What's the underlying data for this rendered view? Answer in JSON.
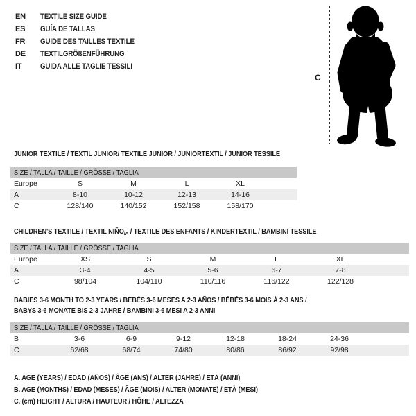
{
  "colors": {
    "bar": "#c8c8c8",
    "stripe": "#ededed",
    "ink": "#1c1c1c"
  },
  "languages": [
    {
      "code": "EN",
      "title": "TEXTILE SIZE GUIDE"
    },
    {
      "code": "ES",
      "title": "GUÍA DE TALLAS"
    },
    {
      "code": "FR",
      "title": "GUIDE DES TAILLES TEXTILE"
    },
    {
      "code": "DE",
      "title": "TEXTILGRÖßENFÜHRUNG"
    },
    {
      "code": "IT",
      "title": "GUIDA ALLE TAGLIE TESSILI"
    }
  ],
  "figure": {
    "height_label": "C"
  },
  "sections": [
    {
      "id": "junior",
      "heading_lines": [
        "JUNIOR TEXTILE / TEXTIL JUNIOR/ TEXTILE JUNIOR / JUNIORTEXTIL / JUNIOR TESSILE"
      ],
      "size_bar": "SIZE / TALLA / TAILLE / GRÖSSE / TAGLIA",
      "rows": [
        {
          "label": "Europe",
          "cells": [
            "S",
            "M",
            "L",
            "XL"
          ],
          "shaded": false
        },
        {
          "label": "A",
          "cells": [
            "8-10",
            "10-12",
            "12-13",
            "14-16"
          ],
          "shaded": true
        },
        {
          "label": "C",
          "cells": [
            "128/140",
            "140/152",
            "152/158",
            "158/170"
          ],
          "shaded": false
        }
      ]
    },
    {
      "id": "children",
      "heading_parts": [
        "CHILDREN'S TEXTILE / TEXTIL NIÑO",
        "/A",
        " / TEXTILE DES ENFANTS / KINDERTEXTIL / BAMBINI TESSILE"
      ],
      "size_bar": "SIZE / TALLA / TAILLE / GRÖSSE / TAGLIA",
      "rows": [
        {
          "label": "Europe",
          "cells": [
            "XS",
            "S",
            "M",
            "L",
            "XL"
          ],
          "shaded": false
        },
        {
          "label": "A",
          "cells": [
            "3-4",
            "4-5",
            "5-6",
            "6-7",
            "7-8"
          ],
          "shaded": true
        },
        {
          "label": "C",
          "cells": [
            "98/104",
            "104/110",
            "110/116",
            "116/122",
            "122/128"
          ],
          "shaded": false
        }
      ]
    },
    {
      "id": "babies",
      "heading_lines": [
        "BABIES 3-6 MONTH TO 2-3 YEARS / BEBÉS 3-6 MESES A 2-3 AÑOS / BÉBÉS 3-6 MOIS À 2-3 ANS /",
        "BABYS 3-6 MONATE BIS 2-3 JAHRE / BAMBINI 3-6 MESI A 2-3 ANNI"
      ],
      "size_bar": "SIZE / TALLA / TAILLE / GRÖSSE / TAGLIA",
      "rows": [
        {
          "label": "B",
          "cells": [
            "3-6",
            "6-9",
            "9-12",
            "12-18",
            "18-24",
            "24-36"
          ],
          "shaded": false
        },
        {
          "label": "C",
          "cells": [
            "62/68",
            "68/74",
            "74/80",
            "80/86",
            "86/92",
            "92/98"
          ],
          "shaded": true
        }
      ]
    }
  ],
  "legend": [
    "A. AGE (YEARS) / EDAD (AÑOS) / ÂGE (ANS) / ALTER (JAHRE) / ETÀ (ANNI)",
    "B. AGE (MONTHS) / EDAD (MESES) / ÂGE (MOIS) / ALTER (MONATE) / ETÀ (MESI)",
    "C. (cm) HEIGHT / ALTURA / HAUTEUR / HÖHE / ALTEZZA"
  ]
}
